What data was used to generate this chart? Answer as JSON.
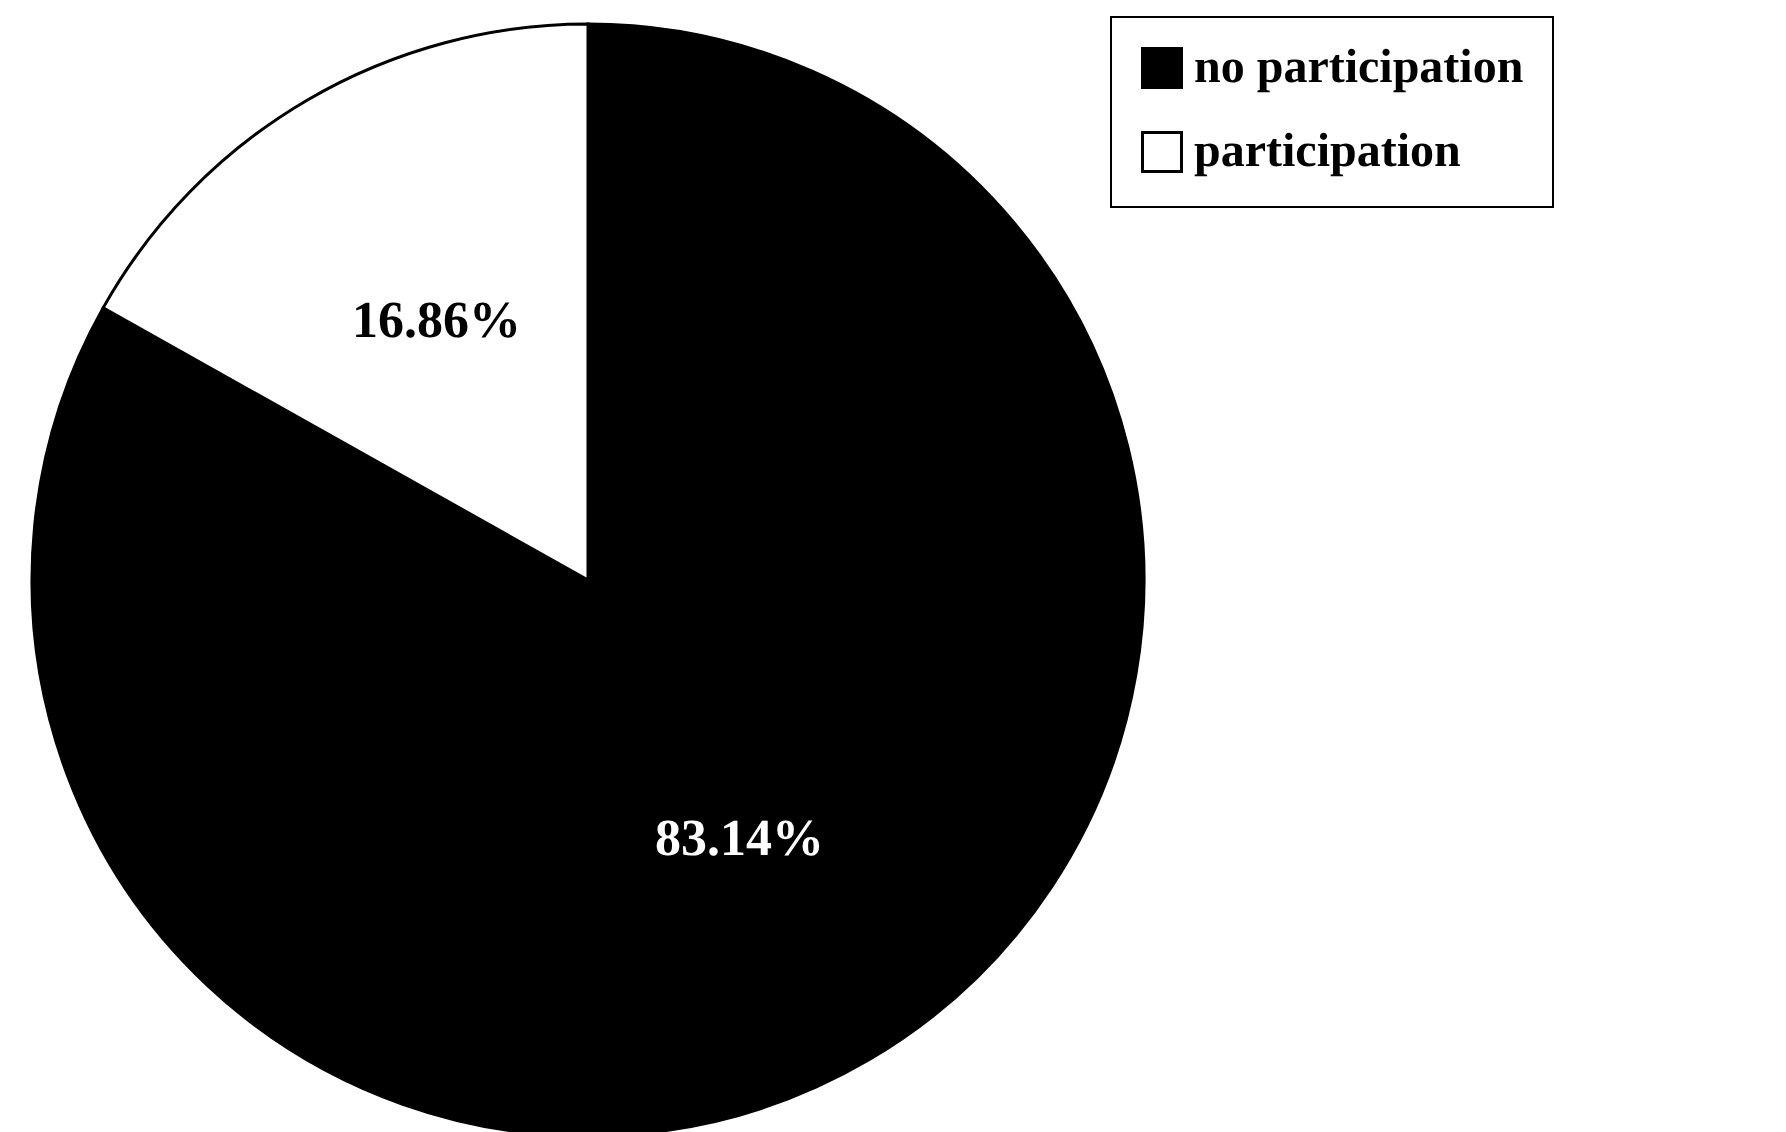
{
  "chart_data": {
    "type": "pie",
    "categories": [
      "no participation",
      "participation"
    ],
    "values": [
      83.14,
      16.86
    ],
    "colors": [
      "#000000",
      "#ffffff"
    ],
    "value_labels": [
      "83.14%",
      "16.86%"
    ],
    "legend": "top right"
  }
}
